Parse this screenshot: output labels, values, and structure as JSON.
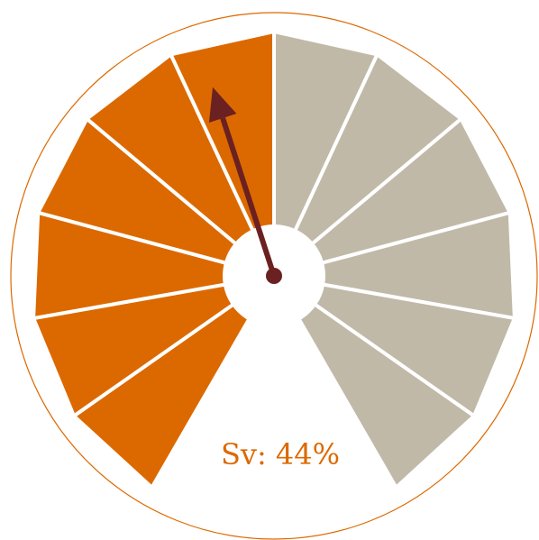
{
  "chart_data": {
    "type": "gauge",
    "label": "Sv: 44%",
    "value": 0.44,
    "segments": 12,
    "filled_segments": 6,
    "colors": {
      "filled": "#dc6900",
      "empty": "#c1b9a8",
      "needle": "#6b2121",
      "outline": "#dc6900",
      "separator": "#ffffff",
      "label": "#dc6900"
    }
  }
}
